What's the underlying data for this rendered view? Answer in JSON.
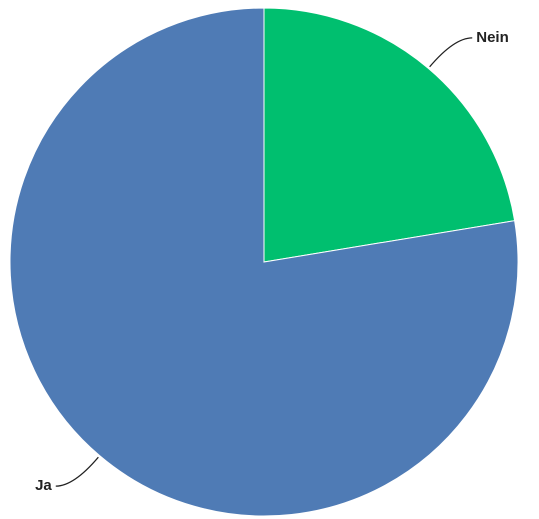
{
  "chart_data": {
    "type": "pie",
    "categories": [
      "Nein",
      "Ja"
    ],
    "values": [
      22.4,
      77.6
    ],
    "colors": [
      "#00bf6f",
      "#4f7bb5"
    ]
  }
}
